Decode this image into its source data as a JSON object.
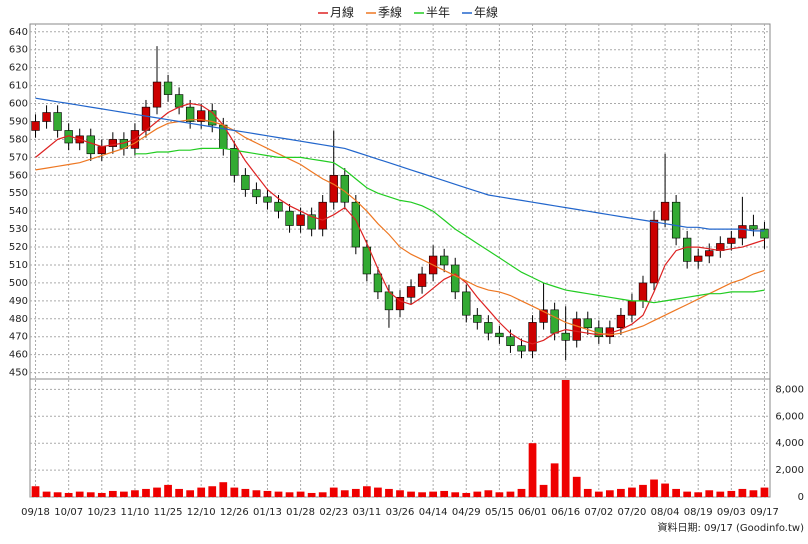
{
  "chart_data": {
    "type": "candlestick",
    "legend": [
      "月線",
      "季線",
      "半年",
      "年線"
    ],
    "footer": "資料日期: 09/17 (Goodinfo.tw)",
    "categories": [
      "09/18",
      null,
      null,
      "10/07",
      null,
      null,
      "10/23",
      null,
      null,
      "11/10",
      null,
      null,
      "11/25",
      null,
      null,
      "12/10",
      null,
      null,
      "12/26",
      null,
      null,
      "01/13",
      null,
      null,
      "01/28",
      null,
      null,
      "02/23",
      null,
      null,
      "03/11",
      null,
      null,
      "03/26",
      null,
      null,
      "04/14",
      null,
      null,
      "04/29",
      null,
      null,
      "05/15",
      null,
      null,
      "06/01",
      null,
      null,
      "06/16",
      null,
      null,
      "07/02",
      null,
      null,
      "07/20",
      null,
      null,
      "08/04",
      null,
      null,
      "08/19",
      null,
      null,
      "09/03",
      null,
      null,
      "09/17"
    ],
    "up_color": "#cc0000",
    "down_color": "#33aa33",
    "grid": true,
    "open": [
      585,
      590,
      595,
      585,
      578,
      582,
      572,
      576,
      580,
      575,
      585,
      598,
      612,
      605,
      598,
      590,
      596,
      588,
      575,
      560,
      552,
      548,
      545,
      540,
      532,
      538,
      530,
      545,
      560,
      545,
      520,
      505,
      495,
      485,
      492,
      498,
      505,
      515,
      510,
      495,
      482,
      478,
      472,
      470,
      465,
      462,
      478,
      485,
      472,
      468,
      480,
      475,
      470,
      475,
      482,
      490,
      500,
      535,
      545,
      525,
      512,
      515,
      518,
      522,
      525,
      532,
      530
    ],
    "high": [
      594,
      599,
      599,
      589,
      586,
      586,
      580,
      584,
      584,
      589,
      602,
      632,
      616,
      609,
      602,
      600,
      600,
      592,
      579,
      564,
      556,
      552,
      549,
      544,
      542,
      542,
      549,
      585,
      564,
      549,
      524,
      509,
      499,
      496,
      502,
      509,
      521,
      519,
      514,
      499,
      486,
      482,
      476,
      474,
      469,
      482,
      500,
      489,
      487,
      484,
      484,
      479,
      479,
      486,
      494,
      504,
      540,
      572,
      549,
      529,
      519,
      522,
      526,
      529,
      548,
      538,
      534
    ],
    "low": [
      581,
      586,
      581,
      574,
      574,
      568,
      568,
      572,
      571,
      571,
      581,
      594,
      601,
      594,
      586,
      586,
      584,
      571,
      556,
      548,
      544,
      541,
      536,
      528,
      528,
      526,
      526,
      541,
      541,
      516,
      501,
      491,
      475,
      481,
      488,
      494,
      501,
      506,
      491,
      478,
      474,
      468,
      466,
      461,
      458,
      458,
      474,
      468,
      457,
      464,
      471,
      466,
      466,
      471,
      478,
      486,
      496,
      531,
      521,
      508,
      508,
      511,
      514,
      518,
      521,
      526,
      519
    ],
    "close": [
      590,
      595,
      585,
      578,
      582,
      572,
      576,
      580,
      575,
      585,
      598,
      612,
      605,
      598,
      590,
      596,
      588,
      575,
      560,
      552,
      548,
      545,
      540,
      532,
      538,
      530,
      545,
      560,
      545,
      520,
      505,
      495,
      485,
      492,
      498,
      505,
      515,
      510,
      495,
      482,
      478,
      472,
      470,
      465,
      462,
      478,
      485,
      472,
      468,
      480,
      475,
      470,
      475,
      482,
      490,
      500,
      535,
      545,
      525,
      512,
      515,
      518,
      522,
      525,
      532,
      530,
      525
    ],
    "series": [
      {
        "name": "月線",
        "color": "#dd2222",
        "values": [
          570,
          575,
          580,
          582,
          580,
          578,
          576,
          577,
          578,
          580,
          585,
          590,
          595,
          598,
          600,
          599,
          595,
          588,
          578,
          568,
          560,
          552,
          547,
          543,
          540,
          537,
          535,
          538,
          542,
          535,
          522,
          508,
          495,
          490,
          488,
          492,
          497,
          502,
          505,
          500,
          492,
          485,
          478,
          472,
          468,
          466,
          468,
          472,
          474,
          473,
          472,
          471,
          472,
          474,
          477,
          482,
          495,
          510,
          518,
          520,
          520,
          519,
          518,
          519,
          520,
          522,
          524
        ]
      },
      {
        "name": "季線",
        "color": "#ee7722",
        "values": [
          563,
          564,
          565,
          566,
          567,
          569,
          571,
          573,
          575,
          578,
          582,
          586,
          589,
          590,
          591,
          591,
          590,
          588,
          585,
          581,
          578,
          575,
          572,
          569,
          566,
          562,
          558,
          555,
          551,
          546,
          540,
          533,
          527,
          520,
          516,
          513,
          510,
          507,
          504,
          501,
          498,
          496,
          495,
          493,
          490,
          487,
          484,
          481,
          478,
          476,
          474,
          472,
          471,
          472,
          474,
          476,
          479,
          482,
          485,
          488,
          491,
          494,
          497,
          500,
          502,
          505,
          507
        ]
      },
      {
        "name": "半年",
        "color": "#22cc22",
        "values": [
          null,
          null,
          null,
          null,
          null,
          null,
          null,
          null,
          null,
          572,
          572,
          573,
          573,
          574,
          574,
          575,
          575,
          575,
          574,
          573,
          572,
          571,
          570,
          570,
          570,
          569,
          568,
          567,
          563,
          558,
          553,
          550,
          548,
          546,
          545,
          543,
          540,
          535,
          530,
          526,
          522,
          518,
          514,
          510,
          506,
          503,
          500,
          498,
          496,
          495,
          494,
          493,
          492,
          491,
          490,
          490,
          489,
          490,
          491,
          492,
          493,
          494,
          494,
          495,
          495,
          495,
          496
        ]
      },
      {
        "name": "年線",
        "color": "#2266cc",
        "values": [
          603,
          602,
          601,
          600,
          599,
          598,
          597,
          596,
          595,
          594,
          593,
          592,
          591,
          590,
          589,
          588,
          587,
          586,
          585,
          584,
          583,
          582,
          581,
          580,
          579,
          578,
          577,
          576,
          575,
          573,
          571,
          569,
          567,
          565,
          563,
          561,
          559,
          557,
          555,
          553,
          551,
          549,
          548,
          547,
          546,
          545,
          544,
          543,
          542,
          541,
          540,
          539,
          538,
          537,
          536,
          535,
          534,
          533,
          532,
          531,
          531,
          530,
          530,
          530,
          530,
          529,
          529
        ]
      }
    ],
    "volume": [
      800,
      400,
      350,
      300,
      400,
      350,
      300,
      450,
      400,
      500,
      600,
      700,
      900,
      600,
      500,
      700,
      800,
      1100,
      700,
      600,
      500,
      450,
      400,
      350,
      400,
      300,
      350,
      700,
      500,
      600,
      800,
      700,
      600,
      500,
      400,
      350,
      400,
      450,
      350,
      300,
      400,
      500,
      350,
      400,
      600,
      4000,
      900,
      2500,
      8700,
      1500,
      600,
      400,
      500,
      600,
      700,
      900,
      1300,
      1000,
      600,
      400,
      350,
      500,
      400,
      450,
      600,
      500,
      700
    ],
    "volume_color": "#ee0000",
    "ylim": [
      447,
      641
    ],
    "yticks": [
      450,
      460,
      470,
      480,
      490,
      500,
      510,
      520,
      530,
      540,
      550,
      560,
      570,
      580,
      590,
      600,
      610,
      620,
      630,
      640
    ],
    "vlim": [
      0,
      8700
    ],
    "vticks": [
      0,
      {
        "value": 2000,
        "label": "2,000"
      },
      {
        "value": 4000,
        "label": "4,000"
      },
      {
        "value": 6000,
        "label": "6,000"
      },
      {
        "value": 8000,
        "label": "8,000"
      }
    ]
  }
}
